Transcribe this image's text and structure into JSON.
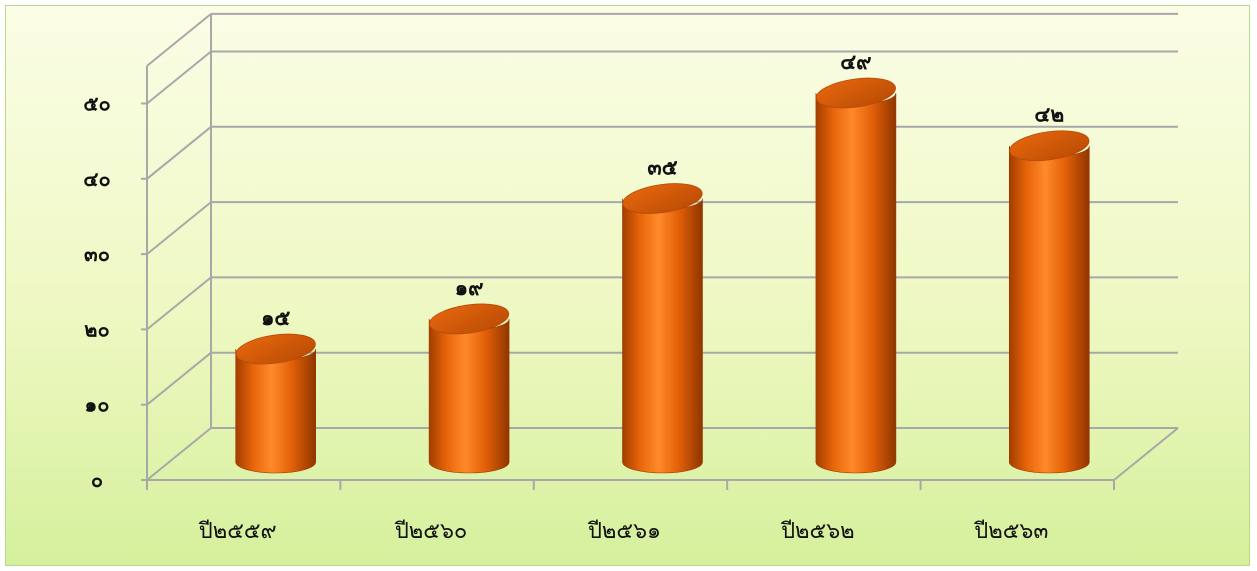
{
  "chart_data": {
    "type": "bar",
    "style": "3d-cylinder",
    "categories": [
      "ปี๒๕๕๙",
      "ปี๒๕๖๐",
      "ปี๒๕๖๑",
      "ปี๒๕๖๒",
      "ปี๒๕๖๓"
    ],
    "values": [
      15,
      19,
      35,
      49,
      42
    ],
    "value_labels": [
      "๑๕",
      "๑๙",
      "๓๕",
      "๔๙",
      "๔๒"
    ],
    "y_ticks": [
      0,
      10,
      20,
      30,
      40,
      50
    ],
    "y_tick_labels": [
      "๐",
      "๑๐",
      "๒๐",
      "๓๐",
      "๔๐",
      "๕๐"
    ],
    "ylim": [
      0,
      55
    ],
    "title": "",
    "xlabel": "",
    "ylabel": "",
    "grid": true,
    "legend": "none",
    "colors": {
      "bar": "#e8650a",
      "bar_light": "#ff9a3c",
      "bar_dark": "#9a3a00",
      "grid": "#a8a8a8",
      "background_top": "#fbfde6",
      "background_bottom": "#d5f09c"
    }
  }
}
